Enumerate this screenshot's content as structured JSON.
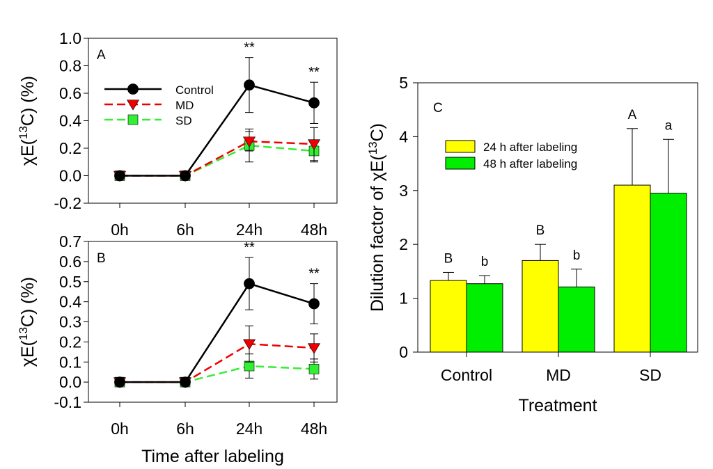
{
  "chart_data": [
    {
      "panel": "A",
      "type": "line",
      "x": [
        "0h",
        "6h",
        "24h",
        "48h"
      ],
      "ylabel": "χE(13C) (%)",
      "ylim": [
        -0.2,
        1.0
      ],
      "yticks": [
        "-0.2",
        "0.0",
        "0.2",
        "0.4",
        "0.6",
        "0.8",
        "1.0"
      ],
      "legend_placement": "upper-left",
      "series": [
        {
          "name": "Control",
          "color": "#000000",
          "marker": "circle",
          "dash": "solid",
          "values": [
            0,
            0,
            0.66,
            0.53
          ],
          "err": [
            0.02,
            0.02,
            0.2,
            0.15
          ]
        },
        {
          "name": "MD",
          "color": "#ee0000",
          "marker": "triangle-down",
          "dash": "dashed",
          "values": [
            0,
            0,
            0.25,
            0.23
          ],
          "err": [
            0.02,
            0.02,
            0.07,
            0.12
          ]
        },
        {
          "name": "SD",
          "color": "#33ee33",
          "marker": "square",
          "dash": "dashed",
          "values": [
            0,
            0,
            0.22,
            0.18
          ],
          "err": [
            0.02,
            0.02,
            0.12,
            0.08
          ]
        }
      ],
      "annotations": [
        {
          "x": "24h",
          "text": "**"
        },
        {
          "x": "48h",
          "text": "**"
        }
      ]
    },
    {
      "panel": "B",
      "type": "line",
      "x": [
        "0h",
        "6h",
        "24h",
        "48h"
      ],
      "xlabel": "Time after labeling",
      "ylabel": "χE(13C) (%)",
      "ylim": [
        -0.1,
        0.7
      ],
      "yticks": [
        "-0.1",
        "0.0",
        "0.1",
        "0.2",
        "0.3",
        "0.4",
        "0.5",
        "0.6",
        "0.7"
      ],
      "series": [
        {
          "name": "Control",
          "color": "#000000",
          "marker": "circle",
          "dash": "solid",
          "values": [
            0,
            0,
            0.49,
            0.39
          ],
          "err": [
            0.01,
            0.01,
            0.13,
            0.1
          ]
        },
        {
          "name": "MD",
          "color": "#ee0000",
          "marker": "triangle-down",
          "dash": "dashed",
          "values": [
            0,
            0,
            0.19,
            0.17
          ],
          "err": [
            0.01,
            0.01,
            0.09,
            0.07
          ]
        },
        {
          "name": "SD",
          "color": "#33ee33",
          "marker": "square",
          "dash": "dashed",
          "values": [
            0,
            0,
            0.08,
            0.065
          ],
          "err": [
            0.01,
            0.01,
            0.06,
            0.05
          ]
        }
      ],
      "annotations": [
        {
          "x": "24h",
          "text": "**"
        },
        {
          "x": "48h",
          "text": "**"
        }
      ]
    },
    {
      "panel": "C",
      "type": "bar",
      "categories": [
        "Control",
        "MD",
        "SD"
      ],
      "xlabel": "Treatment",
      "ylabel": "Dilution factor  of χE(13C)",
      "ylim": [
        0,
        5
      ],
      "yticks": [
        "0",
        "1",
        "2",
        "3",
        "4",
        "5"
      ],
      "legend_placement": "upper-left",
      "series": [
        {
          "name": "24 h after labeling",
          "color": "#ffff00",
          "values": [
            1.33,
            1.7,
            3.1
          ],
          "err": [
            0.15,
            0.3,
            1.05
          ],
          "letters": [
            "B",
            "B",
            "A"
          ]
        },
        {
          "name": "48 h after labeling",
          "color": "#00ee00",
          "values": [
            1.27,
            1.21,
            2.95
          ],
          "err": [
            0.15,
            0.33,
            1.0
          ],
          "letters": [
            "b",
            "b",
            "a"
          ]
        }
      ]
    }
  ]
}
